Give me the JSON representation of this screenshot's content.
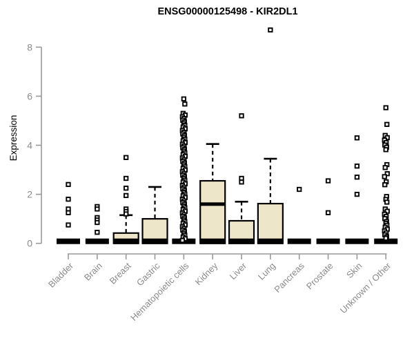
{
  "header": {
    "title": "ENSG00000125498 - KIR2DL1"
  },
  "chart_data": {
    "type": "boxplot",
    "title": "ENSG00000125498 - KIR2DL1",
    "ylabel": "Expression",
    "xlabel": "",
    "ylim": [
      0,
      8.8
    ],
    "yticks": [
      0,
      2,
      4,
      6,
      8
    ],
    "grid": false,
    "legend": "none",
    "style": {
      "box_fill": "#EDE6C8",
      "box_stroke": "#000000",
      "median_color": "#000000",
      "axis_color": "#999999",
      "label_color": "#8a8a8a",
      "title_color": "#000000",
      "outlier_stroke": "#000000",
      "outlier_fill": "#ffffff"
    },
    "categories": [
      {
        "label": "Bladder",
        "collapsed": true,
        "median": 0,
        "outliers": [
          2.4,
          1.8,
          1.4,
          1.25,
          0.75
        ]
      },
      {
        "label": "Brain",
        "collapsed": true,
        "median": 0,
        "outliers": [
          1.5,
          1.4,
          1.05,
          0.95,
          0.85,
          0.45
        ]
      },
      {
        "label": "Breast",
        "collapsed": false,
        "q1": 0,
        "median": 0,
        "q3": 0.42,
        "whisker_high": 1.15,
        "outliers": [
          3.5,
          2.65,
          2.25,
          1.95,
          1.4,
          1.3,
          1.2
        ]
      },
      {
        "label": "Gastric",
        "collapsed": false,
        "q1": 0,
        "median": 0,
        "q3": 1.0,
        "whisker_high": 2.3,
        "outliers": []
      },
      {
        "label": "Hematopoietic cells",
        "collapsed": true,
        "median": 0,
        "outliers": [
          5.89,
          5.68,
          5.3,
          5.23,
          5.16,
          5.09,
          5.02,
          4.95,
          4.88,
          4.81,
          4.74,
          4.67,
          4.6,
          4.53,
          4.46,
          4.39,
          4.32,
          4.25,
          4.18,
          4.11,
          4.04,
          3.97,
          3.9,
          3.83,
          3.76,
          3.69,
          3.62,
          3.55,
          3.48,
          3.41,
          3.34,
          3.27,
          3.2,
          3.13,
          3.06,
          2.99,
          2.92,
          2.85,
          2.78,
          2.71,
          2.64,
          2.57,
          2.5,
          2.43,
          2.36,
          2.29,
          2.22,
          2.15,
          2.08,
          2.01,
          1.94,
          1.87,
          1.8,
          1.73,
          1.66,
          1.59,
          1.52,
          1.45,
          1.38,
          1.31,
          1.24,
          1.17,
          1.1,
          1.03,
          0.96,
          0.89,
          0.82,
          0.75,
          0.68,
          0.61,
          0.54,
          0.47,
          0.4,
          0.33,
          0.26,
          0.19,
          0.12
        ]
      },
      {
        "label": "Kidney",
        "collapsed": false,
        "q1": 0,
        "median": 1.6,
        "q3": 2.55,
        "whisker_high": 4.05,
        "outliers": []
      },
      {
        "label": "Liver",
        "collapsed": false,
        "q1": 0,
        "median": 0,
        "q3": 0.92,
        "whisker_high": 1.7,
        "outliers": [
          5.2,
          2.65,
          2.5
        ]
      },
      {
        "label": "Lung",
        "collapsed": false,
        "q1": 0,
        "median": 0,
        "q3": 1.62,
        "whisker_high": 3.45,
        "outliers": [
          8.7
        ]
      },
      {
        "label": "Pancreas",
        "collapsed": true,
        "median": 0,
        "outliers": [
          2.2
        ]
      },
      {
        "label": "Prostate",
        "collapsed": true,
        "median": 0,
        "outliers": [
          2.55,
          1.25
        ]
      },
      {
        "label": "Skin",
        "collapsed": true,
        "median": 0,
        "outliers": [
          4.3,
          3.15,
          2.7,
          2.0
        ]
      },
      {
        "label": "Unknown / Other",
        "collapsed": true,
        "median": 0,
        "outliers": [
          5.53,
          4.85,
          4.4,
          4.31,
          4.21,
          4.11,
          4.01,
          3.92,
          3.82,
          3.21,
          3.09,
          2.84,
          2.72,
          2.51,
          2.39,
          1.91,
          1.79,
          1.68,
          1.4,
          1.31,
          1.19,
          1.1,
          1.01,
          0.89,
          0.82,
          0.74,
          0.66,
          0.58,
          0.51,
          0.43,
          0.35,
          0.27,
          0.21
        ]
      }
    ]
  }
}
